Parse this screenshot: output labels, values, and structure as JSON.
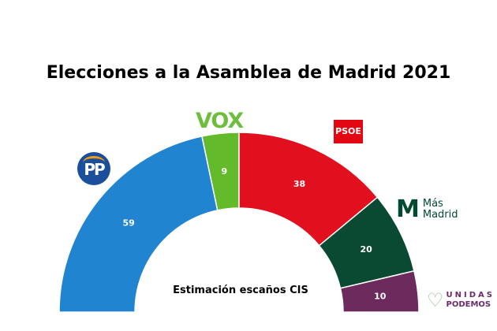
{
  "chart_data": {
    "type": "pie",
    "variant": "semi-donut",
    "title": "Elecciones a la Asamblea de Madrid 2021",
    "subtitle": "Estimación escaños CIS",
    "series": [
      {
        "name": "PP",
        "value": 59,
        "color": "#2184d0"
      },
      {
        "name": "VOX",
        "value": 9,
        "color": "#63bb2b"
      },
      {
        "name": "PSOE",
        "value": 38,
        "color": "#e2101e"
      },
      {
        "name": "Más Madrid",
        "value": 20,
        "color": "#0a4a33"
      },
      {
        "name": "Unidas Podemos",
        "value": 10,
        "color": "#6d2a5d"
      }
    ]
  },
  "logos": {
    "pp": "PP",
    "vox": "VOX",
    "psoe": "PSOE",
    "mas_madrid": {
      "mark": "M",
      "line1": "Más",
      "line2": "Madrid"
    },
    "unidas_podemos": {
      "line1": "UNIDAS",
      "line2": "PODEMOS"
    }
  }
}
